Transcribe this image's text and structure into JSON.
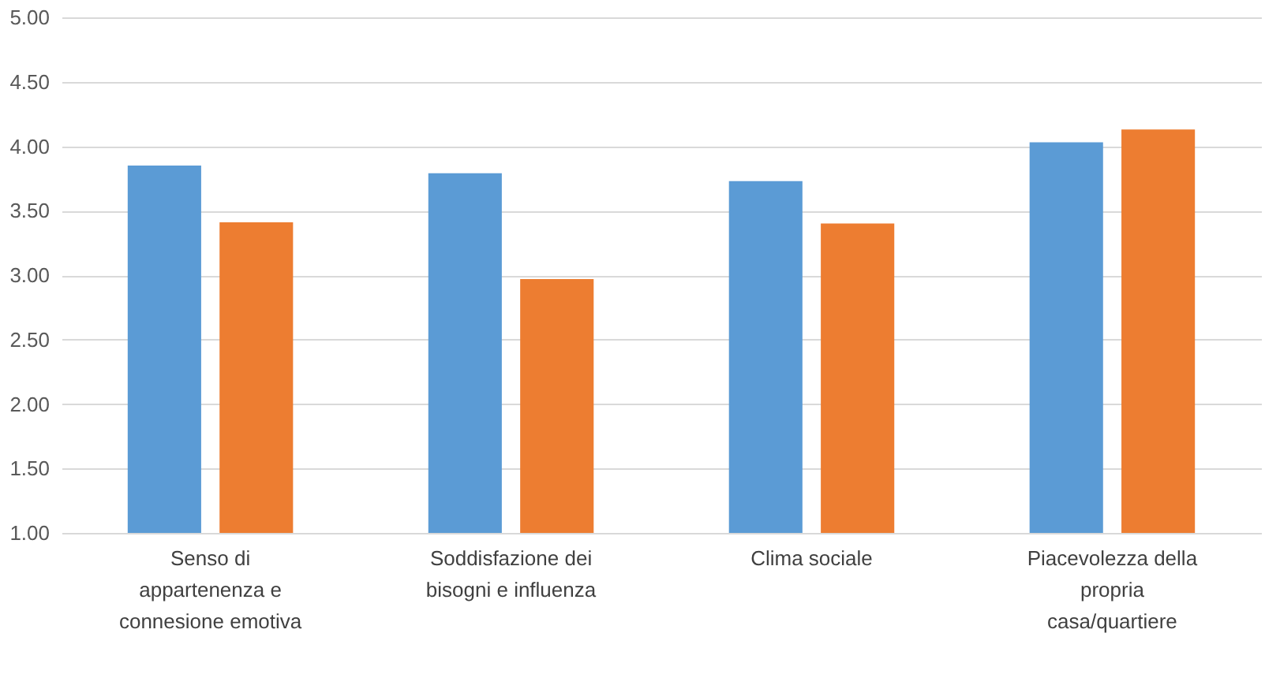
{
  "chart_data": {
    "type": "bar",
    "categories": [
      "Senso di\nappartenenza e\nconnesione emotiva",
      "Soddisfazione dei\nbisogni e influenza",
      "Clima sociale",
      "Piacevolezza della\npropria\ncasa/quartiere"
    ],
    "series": [
      {
        "color": "#5b9bd5",
        "values": [
          3.85,
          3.79,
          3.73,
          4.03
        ]
      },
      {
        "color": "#ed7d31",
        "values": [
          3.41,
          2.97,
          3.4,
          4.13
        ]
      }
    ],
    "ylim": [
      1.0,
      5.0
    ],
    "yticks": [
      {
        "value": 1.0,
        "label": "1.00"
      },
      {
        "value": 1.5,
        "label": "1.50"
      },
      {
        "value": 2.0,
        "label": "2.00"
      },
      {
        "value": 2.5,
        "label": "2.50"
      },
      {
        "value": 3.0,
        "label": "3.00"
      },
      {
        "value": 3.5,
        "label": "3.50"
      },
      {
        "value": 4.0,
        "label": "4.00"
      },
      {
        "value": 4.5,
        "label": "4.50"
      },
      {
        "value": 5.0,
        "label": "5.00"
      }
    ],
    "grid": "y",
    "legend": false
  }
}
